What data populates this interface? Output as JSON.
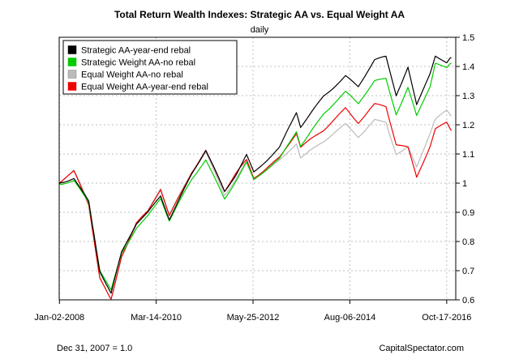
{
  "chart_data": {
    "type": "line",
    "title": "Total Return Wealth Indexes: Strategic AA vs. Equal Weight AA",
    "subtitle": "daily",
    "x_ticks": [
      "Jan-02-2008",
      "Mar-14-2010",
      "May-25-2012",
      "Aug-06-2014",
      "Oct-17-2016"
    ],
    "y_ticks": [
      0.6,
      0.7,
      0.8,
      0.9,
      1,
      1.1,
      1.2,
      1.3,
      1.4,
      1.5
    ],
    "ylim": [
      0.6,
      1.5
    ],
    "xlim": [
      "2007-12-31",
      "2016-12-31"
    ],
    "grid": true,
    "y_axis_side": "right",
    "legend_position": "top-left",
    "series": [
      {
        "name": "Strategic AA-year-end rebal",
        "color": "#000000",
        "points": [
          [
            "2008-01-02",
            1.0
          ],
          [
            "2008-05-01",
            1.02
          ],
          [
            "2008-09-01",
            0.94
          ],
          [
            "2008-12-01",
            0.7
          ],
          [
            "2009-03-05",
            0.62
          ],
          [
            "2009-06-01",
            0.76
          ],
          [
            "2009-10-01",
            0.86
          ],
          [
            "2010-01-04",
            0.9
          ],
          [
            "2010-04-20",
            0.96
          ],
          [
            "2010-07-01",
            0.88
          ],
          [
            "2011-01-03",
            1.03
          ],
          [
            "2011-04-29",
            1.11
          ],
          [
            "2011-10-03",
            0.97
          ],
          [
            "2012-01-03",
            1.03
          ],
          [
            "2012-04-01",
            1.1
          ],
          [
            "2012-06-01",
            1.04
          ],
          [
            "2012-12-31",
            1.12
          ],
          [
            "2013-05-20",
            1.24
          ],
          [
            "2013-06-24",
            1.19
          ],
          [
            "2013-12-31",
            1.3
          ],
          [
            "2014-07-01",
            1.37
          ],
          [
            "2014-10-15",
            1.33
          ],
          [
            "2015-02-27",
            1.42
          ],
          [
            "2015-06-01",
            1.43
          ],
          [
            "2015-08-25",
            1.3
          ],
          [
            "2015-12-01",
            1.4
          ],
          [
            "2016-02-11",
            1.27
          ],
          [
            "2016-06-01",
            1.38
          ],
          [
            "2016-07-15",
            1.44
          ],
          [
            "2016-10-17",
            1.41
          ],
          [
            "2016-11-25",
            1.43
          ]
        ]
      },
      {
        "name": "Strategic Weight AA-no rebal",
        "color": "#00cc00",
        "points": [
          [
            "2008-01-02",
            1.0
          ],
          [
            "2008-05-01",
            1.01
          ],
          [
            "2008-09-01",
            0.93
          ],
          [
            "2008-12-01",
            0.7
          ],
          [
            "2009-03-05",
            0.63
          ],
          [
            "2009-06-01",
            0.76
          ],
          [
            "2009-10-01",
            0.85
          ],
          [
            "2010-01-04",
            0.89
          ],
          [
            "2010-04-20",
            0.95
          ],
          [
            "2010-07-01",
            0.87
          ],
          [
            "2011-01-03",
            1.01
          ],
          [
            "2011-04-29",
            1.08
          ],
          [
            "2011-10-03",
            0.95
          ],
          [
            "2012-01-03",
            1.01
          ],
          [
            "2012-04-01",
            1.07
          ],
          [
            "2012-06-01",
            1.01
          ],
          [
            "2012-12-31",
            1.08
          ],
          [
            "2013-05-20",
            1.18
          ],
          [
            "2013-06-24",
            1.13
          ],
          [
            "2013-12-31",
            1.24
          ],
          [
            "2014-07-01",
            1.31
          ],
          [
            "2014-10-15",
            1.27
          ],
          [
            "2015-02-27",
            1.35
          ],
          [
            "2015-06-01",
            1.36
          ],
          [
            "2015-08-25",
            1.24
          ],
          [
            "2015-12-01",
            1.33
          ],
          [
            "2016-02-11",
            1.23
          ],
          [
            "2016-06-01",
            1.33
          ],
          [
            "2016-07-15",
            1.41
          ],
          [
            "2016-10-17",
            1.39
          ],
          [
            "2016-11-25",
            1.41
          ]
        ]
      },
      {
        "name": "Equal Weight AA-no rebal",
        "color": "#bbbbbb",
        "points": [
          [
            "2008-01-02",
            1.0
          ],
          [
            "2008-05-01",
            1.04
          ],
          [
            "2008-09-01",
            0.93
          ],
          [
            "2008-12-01",
            0.68
          ],
          [
            "2009-03-05",
            0.6
          ],
          [
            "2009-06-01",
            0.75
          ],
          [
            "2009-10-01",
            0.86
          ],
          [
            "2010-01-04",
            0.9
          ],
          [
            "2010-04-20",
            0.98
          ],
          [
            "2010-07-01",
            0.89
          ],
          [
            "2011-01-03",
            1.04
          ],
          [
            "2011-04-29",
            1.11
          ],
          [
            "2011-10-03",
            0.96
          ],
          [
            "2012-01-03",
            1.01
          ],
          [
            "2012-04-01",
            1.07
          ],
          [
            "2012-06-01",
            1.01
          ],
          [
            "2012-12-31",
            1.08
          ],
          [
            "2013-05-20",
            1.14
          ],
          [
            "2013-06-24",
            1.09
          ],
          [
            "2013-12-31",
            1.14
          ],
          [
            "2014-07-01",
            1.2
          ],
          [
            "2014-10-15",
            1.16
          ],
          [
            "2015-02-27",
            1.22
          ],
          [
            "2015-06-01",
            1.21
          ],
          [
            "2015-08-25",
            1.1
          ],
          [
            "2015-12-01",
            1.12
          ],
          [
            "2016-02-11",
            1.05
          ],
          [
            "2016-06-01",
            1.17
          ],
          [
            "2016-07-15",
            1.22
          ],
          [
            "2016-10-17",
            1.25
          ],
          [
            "2016-11-25",
            1.23
          ]
        ]
      },
      {
        "name": "Equal Weight AA-year-end rebal",
        "color": "#ee0000",
        "points": [
          [
            "2008-01-02",
            1.0
          ],
          [
            "2008-05-01",
            1.04
          ],
          [
            "2008-09-01",
            0.93
          ],
          [
            "2008-12-01",
            0.68
          ],
          [
            "2009-03-05",
            0.6
          ],
          [
            "2009-06-01",
            0.75
          ],
          [
            "2009-10-01",
            0.86
          ],
          [
            "2010-01-04",
            0.9
          ],
          [
            "2010-04-20",
            0.98
          ],
          [
            "2010-07-01",
            0.89
          ],
          [
            "2011-01-03",
            1.04
          ],
          [
            "2011-04-29",
            1.11
          ],
          [
            "2011-10-03",
            0.97
          ],
          [
            "2012-01-03",
            1.03
          ],
          [
            "2012-04-01",
            1.08
          ],
          [
            "2012-06-01",
            1.02
          ],
          [
            "2012-12-31",
            1.09
          ],
          [
            "2013-05-20",
            1.17
          ],
          [
            "2013-06-24",
            1.12
          ],
          [
            "2013-12-31",
            1.18
          ],
          [
            "2014-07-01",
            1.26
          ],
          [
            "2014-10-15",
            1.21
          ],
          [
            "2015-02-27",
            1.27
          ],
          [
            "2015-06-01",
            1.26
          ],
          [
            "2015-08-25",
            1.13
          ],
          [
            "2015-12-01",
            1.12
          ],
          [
            "2016-02-11",
            1.02
          ],
          [
            "2016-06-01",
            1.13
          ],
          [
            "2016-07-15",
            1.19
          ],
          [
            "2016-10-17",
            1.21
          ],
          [
            "2016-11-25",
            1.18
          ]
        ]
      }
    ]
  },
  "footer": {
    "left": "Dec 31, 2007 = 1.0",
    "right": "CapitalSpectator.com"
  }
}
